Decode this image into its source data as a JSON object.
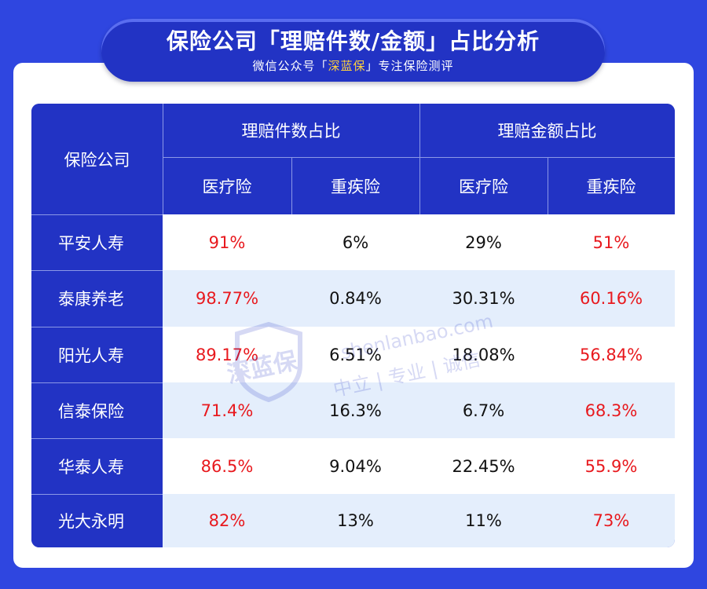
{
  "header": {
    "title": "保险公司「理赔件数/金额」占比分析",
    "subtitle_prefix": "微信公众号「",
    "subtitle_highlight": "深蓝保",
    "subtitle_suffix": "」专注保险测评"
  },
  "table": {
    "col_company": "保险公司",
    "group_count": "理赔件数占比",
    "group_amount": "理赔金额占比",
    "sub_medical_1": "医疗险",
    "sub_critical_1": "重疾险",
    "sub_medical_2": "医疗险",
    "sub_critical_2": "重疾险",
    "rows": [
      {
        "company": "平安人寿",
        "count_medical": "91%",
        "count_critical": "6%",
        "amount_medical": "29%",
        "amount_critical": "51%"
      },
      {
        "company": "泰康养老",
        "count_medical": "98.77%",
        "count_critical": "0.84%",
        "amount_medical": "30.31%",
        "amount_critical": "60.16%"
      },
      {
        "company": "阳光人寿",
        "count_medical": "89.17%",
        "count_critical": "6.51%",
        "amount_medical": "18.08%",
        "amount_critical": "56.84%"
      },
      {
        "company": "信泰保险",
        "count_medical": "71.4%",
        "count_critical": "16.3%",
        "amount_medical": "6.7%",
        "amount_critical": "68.3%"
      },
      {
        "company": "华泰人寿",
        "count_medical": "86.5%",
        "count_critical": "9.04%",
        "amount_medical": "22.45%",
        "amount_critical": "55.9%"
      },
      {
        "company": "光大永明",
        "count_medical": "82%",
        "count_critical": "13%",
        "amount_medical": "11%",
        "amount_critical": "73%"
      }
    ]
  },
  "watermark": {
    "logo": "深蓝保",
    "domain": "shenlanbao.com",
    "slogan": "中立 | 专业 | 诚信"
  },
  "colors": {
    "background": "#2f46e0",
    "header_navy": "#2233c4",
    "highlight_yellow": "#ffd23c",
    "value_red": "#e8191e",
    "row_alt": "#e4eefc"
  }
}
